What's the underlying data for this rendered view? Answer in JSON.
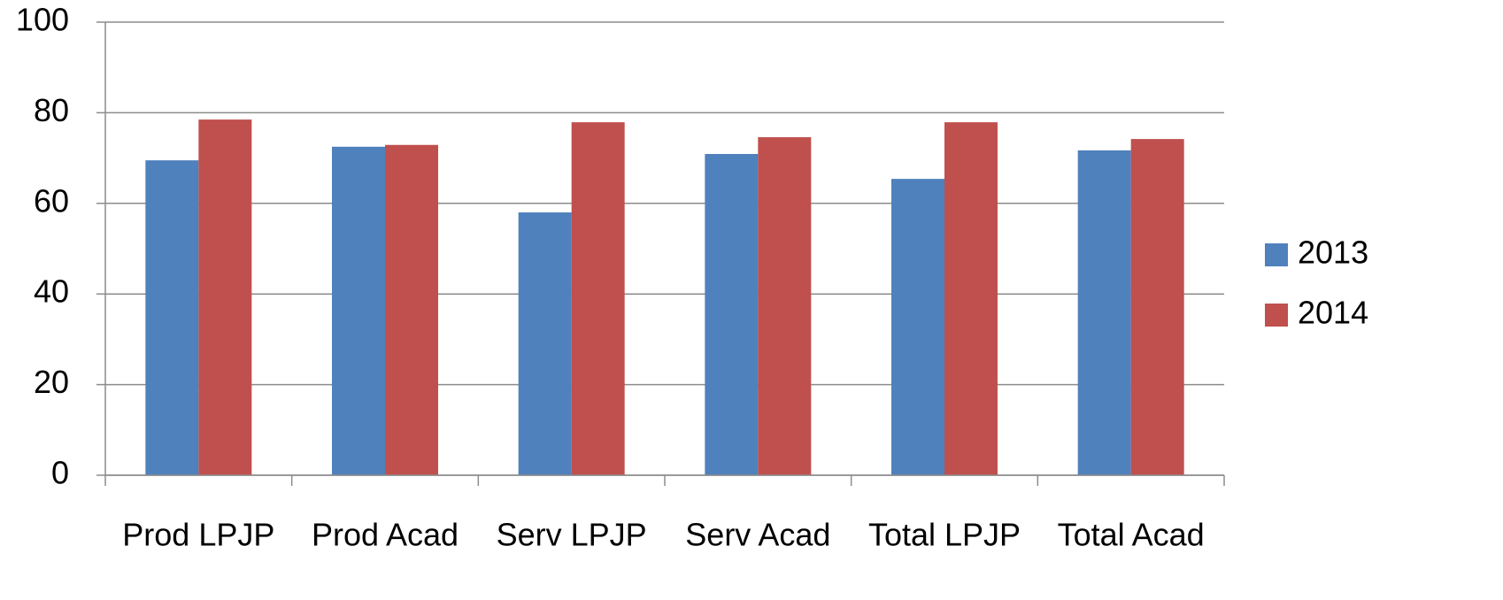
{
  "chart_data": {
    "type": "bar",
    "categories": [
      "Prod LPJP",
      "Prod Acad",
      "Serv LPJP",
      "Serv Acad",
      "Total LPJP",
      "Total Acad"
    ],
    "series": [
      {
        "name": "2013",
        "color": "#4f81bd",
        "values": [
          69.5,
          72.5,
          58,
          70.9,
          65.4,
          71.7
        ]
      },
      {
        "name": "2014",
        "color": "#c0504d",
        "values": [
          78.5,
          72.9,
          77.9,
          74.6,
          77.9,
          74.2
        ]
      }
    ],
    "ylim": [
      0,
      100
    ],
    "yticks": [
      0,
      20,
      40,
      60,
      80,
      100
    ],
    "grid": true,
    "legend": "right"
  }
}
